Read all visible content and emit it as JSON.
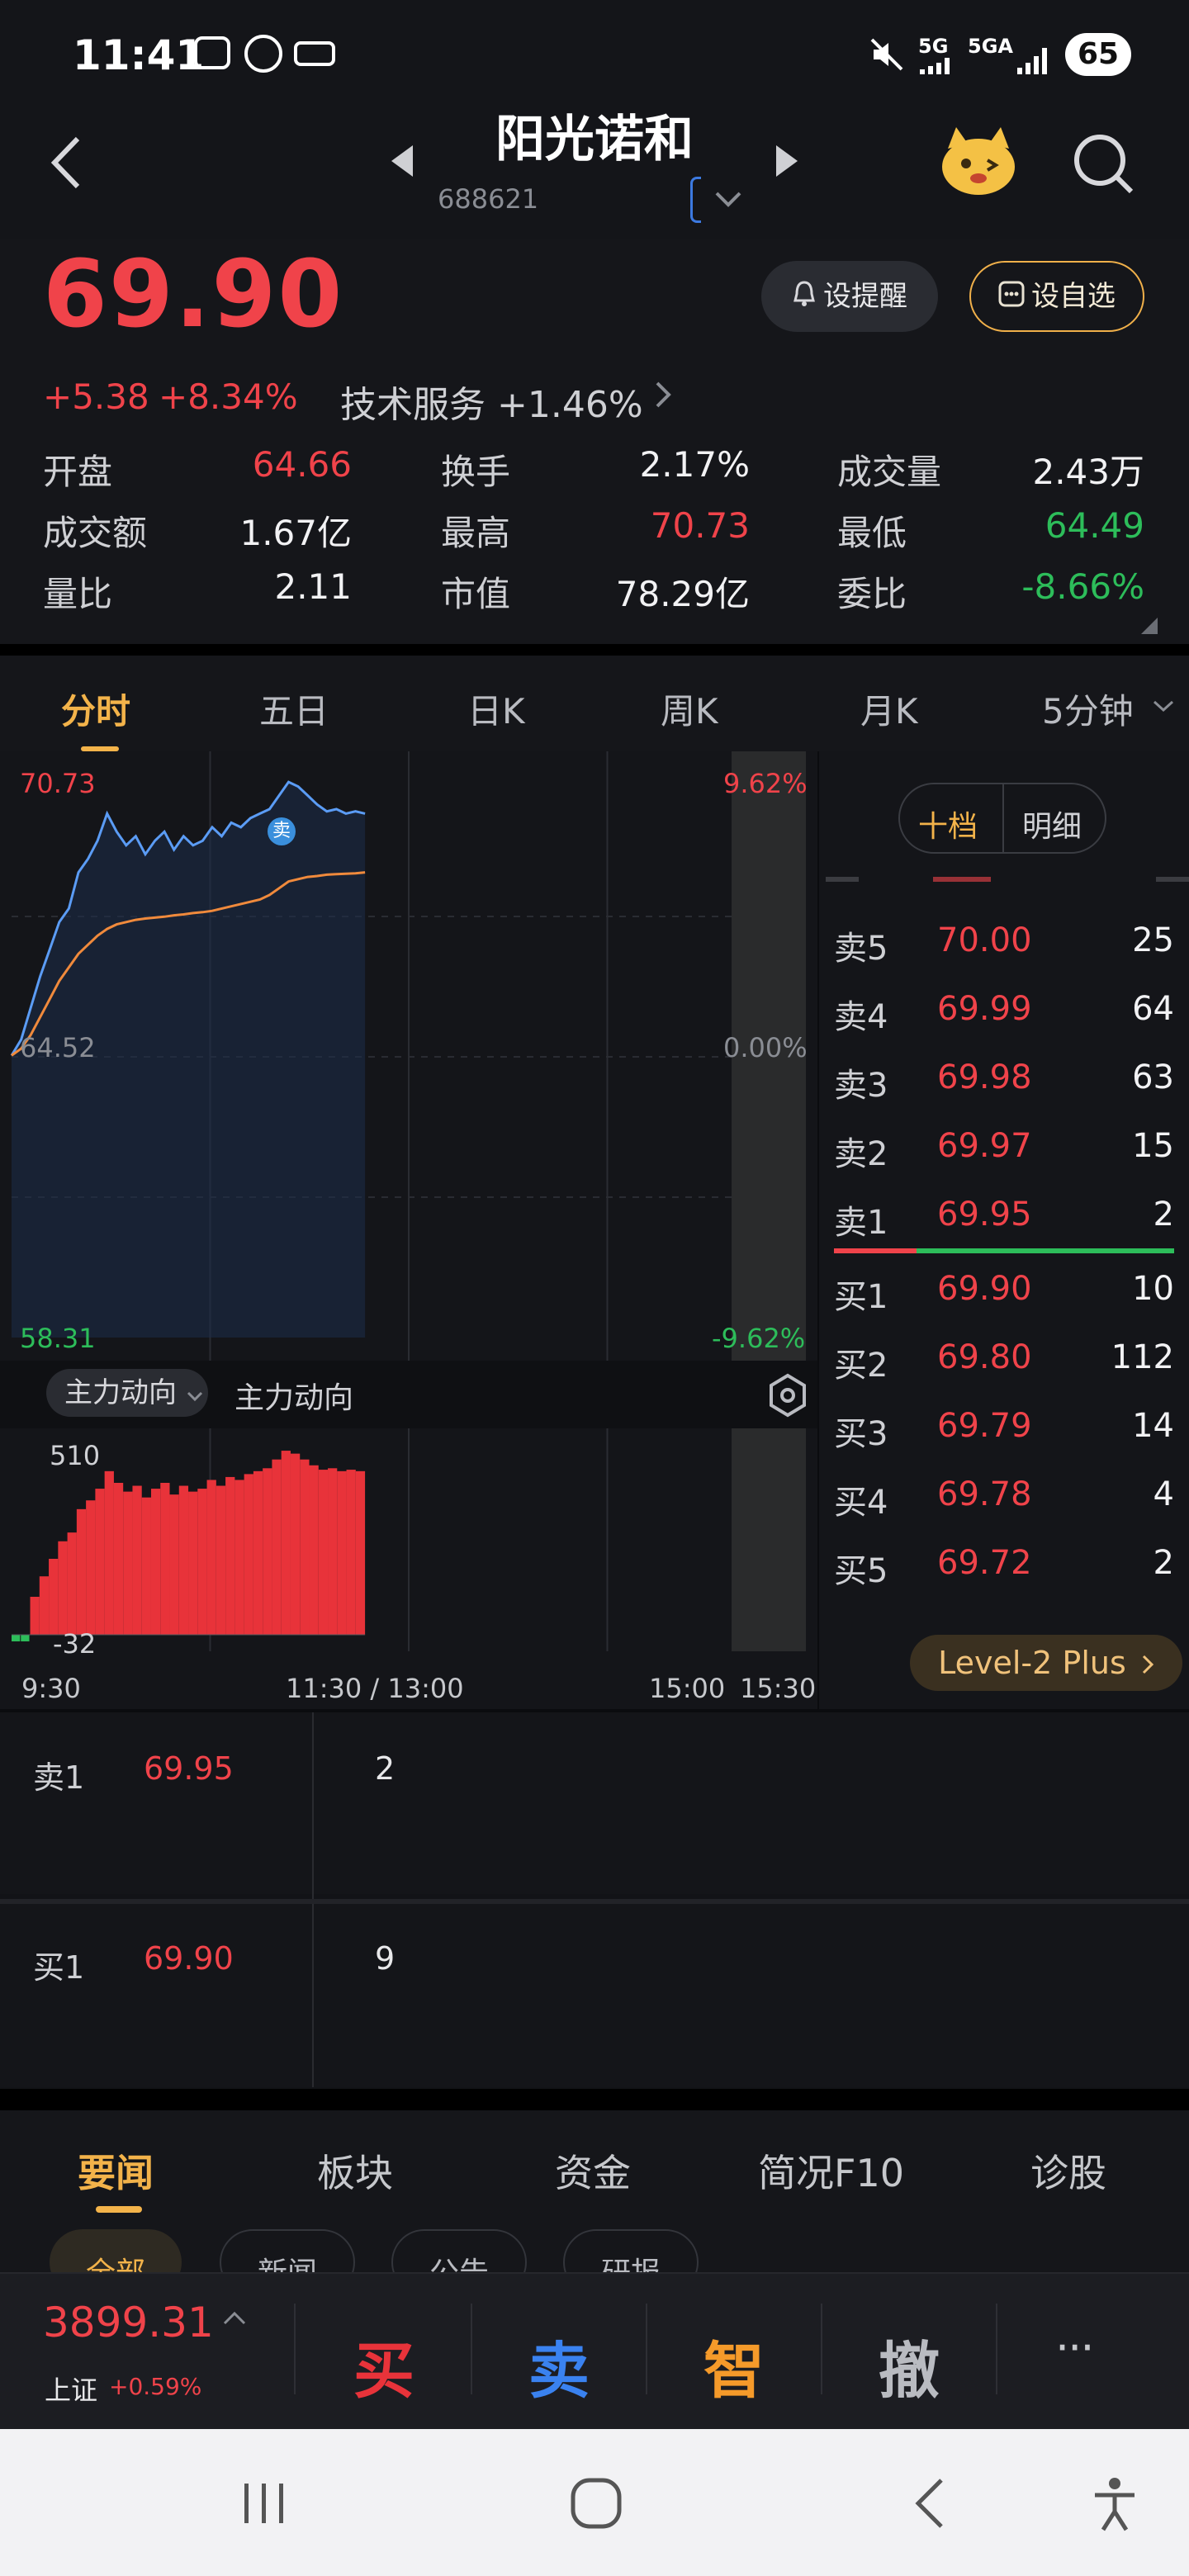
{
  "status": {
    "time": "11:41",
    "battery": "65",
    "sig1": "5G",
    "sig2": "5GA"
  },
  "header": {
    "name": "阳光诺和",
    "code": "688621"
  },
  "quote": {
    "price": "69.90",
    "change": "+5.38",
    "change_pct": "+8.34%",
    "sector": "技术服务 +1.46%",
    "remind_btn": "设提醒",
    "watch_btn": "设自选",
    "stats": [
      {
        "label": "开盘",
        "value": "64.66",
        "color": "red"
      },
      {
        "label": "换手",
        "value": "2.17%",
        "color": "white"
      },
      {
        "label": "成交量",
        "value": "2.43万",
        "color": "white"
      },
      {
        "label": "成交额",
        "value": "1.67亿",
        "color": "white"
      },
      {
        "label": "最高",
        "value": "70.73",
        "color": "red"
      },
      {
        "label": "最低",
        "value": "64.49",
        "color": "green"
      },
      {
        "label": "量比",
        "value": "2.11",
        "color": "white"
      },
      {
        "label": "市值",
        "value": "78.29亿",
        "color": "white"
      },
      {
        "label": "委比",
        "value": "-8.66%",
        "color": "green"
      }
    ]
  },
  "tabs": [
    "分时",
    "五日",
    "日K",
    "周K",
    "月K",
    "5分钟"
  ],
  "chart": {
    "high_label": "70.73",
    "mid_label": "64.52",
    "low_label": "58.31",
    "pct_high": "9.62%",
    "pct_mid": "0.00%",
    "pct_low": "-9.62%",
    "sell_marker": "卖",
    "indicator_select": "主力动向",
    "indicator_title": "主力动向",
    "vol_high": "510",
    "vol_low": "-32",
    "time_labels": [
      "9:30",
      "11:30 / 13:00",
      "15:00",
      "15:30"
    ],
    "colors": {
      "price": "#5b9cf5",
      "avg": "#f08a3c",
      "flow_up": "#e8333a",
      "flow_down": "#2dbd5a"
    }
  },
  "chart_data": {
    "type": "line",
    "series": [
      {
        "values": [
          64.55,
          64.9,
          65.6,
          66.3,
          66.9,
          67.5,
          67.8,
          68.6,
          68.9,
          69.3,
          69.9,
          69.5,
          69.2,
          69.4,
          69.0,
          69.3,
          69.5,
          69.1,
          69.4,
          69.2,
          69.3,
          69.6,
          69.4,
          69.7,
          69.6,
          69.8,
          69.9,
          70.0,
          70.3,
          70.6,
          70.5,
          70.3,
          70.1,
          69.95,
          70.0,
          69.9,
          69.95,
          69.9
        ]
      },
      {
        "values": [
          64.55,
          64.7,
          65.0,
          65.4,
          65.8,
          66.2,
          66.5,
          66.8,
          67.0,
          67.2,
          67.35,
          67.45,
          67.5,
          67.55,
          67.58,
          67.6,
          67.62,
          67.65,
          67.67,
          67.7,
          67.72,
          67.75,
          67.8,
          67.85,
          67.9,
          67.95,
          68.0,
          68.1,
          68.25,
          68.4,
          68.45,
          68.5,
          68.52,
          68.55,
          68.56,
          68.57,
          68.58,
          68.6
        ]
      }
    ],
    "ylim": [
      58.31,
      70.73
    ]
  },
  "orderbook": {
    "tab_ten": "十档",
    "tab_detail": "明细",
    "asks": [
      {
        "label": "卖5",
        "price": "70.00",
        "qty": "25"
      },
      {
        "label": "卖4",
        "price": "69.99",
        "qty": "64"
      },
      {
        "label": "卖3",
        "price": "69.98",
        "qty": "63"
      },
      {
        "label": "卖2",
        "price": "69.97",
        "qty": "15"
      },
      {
        "label": "卖1",
        "price": "69.95",
        "qty": "2"
      }
    ],
    "bids": [
      {
        "label": "买1",
        "price": "69.90",
        "qty": "10"
      },
      {
        "label": "买2",
        "price": "69.80",
        "qty": "112"
      },
      {
        "label": "买3",
        "price": "69.79",
        "qty": "14"
      },
      {
        "label": "买4",
        "price": "69.78",
        "qty": "4"
      },
      {
        "label": "买5",
        "price": "69.72",
        "qty": "2"
      }
    ],
    "level2": "Level-2 Plus"
  },
  "queue": {
    "sell": {
      "label": "卖1",
      "price": "69.95",
      "qty": "2"
    },
    "buy": {
      "label": "买1",
      "price": "69.90",
      "qty": "9"
    }
  },
  "news_tabs": [
    "要闻",
    "板块",
    "资金",
    "简况F10",
    "诊股"
  ],
  "news_chips": [
    "全部",
    "新闻",
    "公告",
    "研报"
  ],
  "index": {
    "value": "3899.31",
    "name": "上证",
    "change": "+0.59%"
  },
  "actions": {
    "buy": "买",
    "sell": "卖",
    "smart": "智",
    "cancel": "撤",
    "more": "···"
  }
}
